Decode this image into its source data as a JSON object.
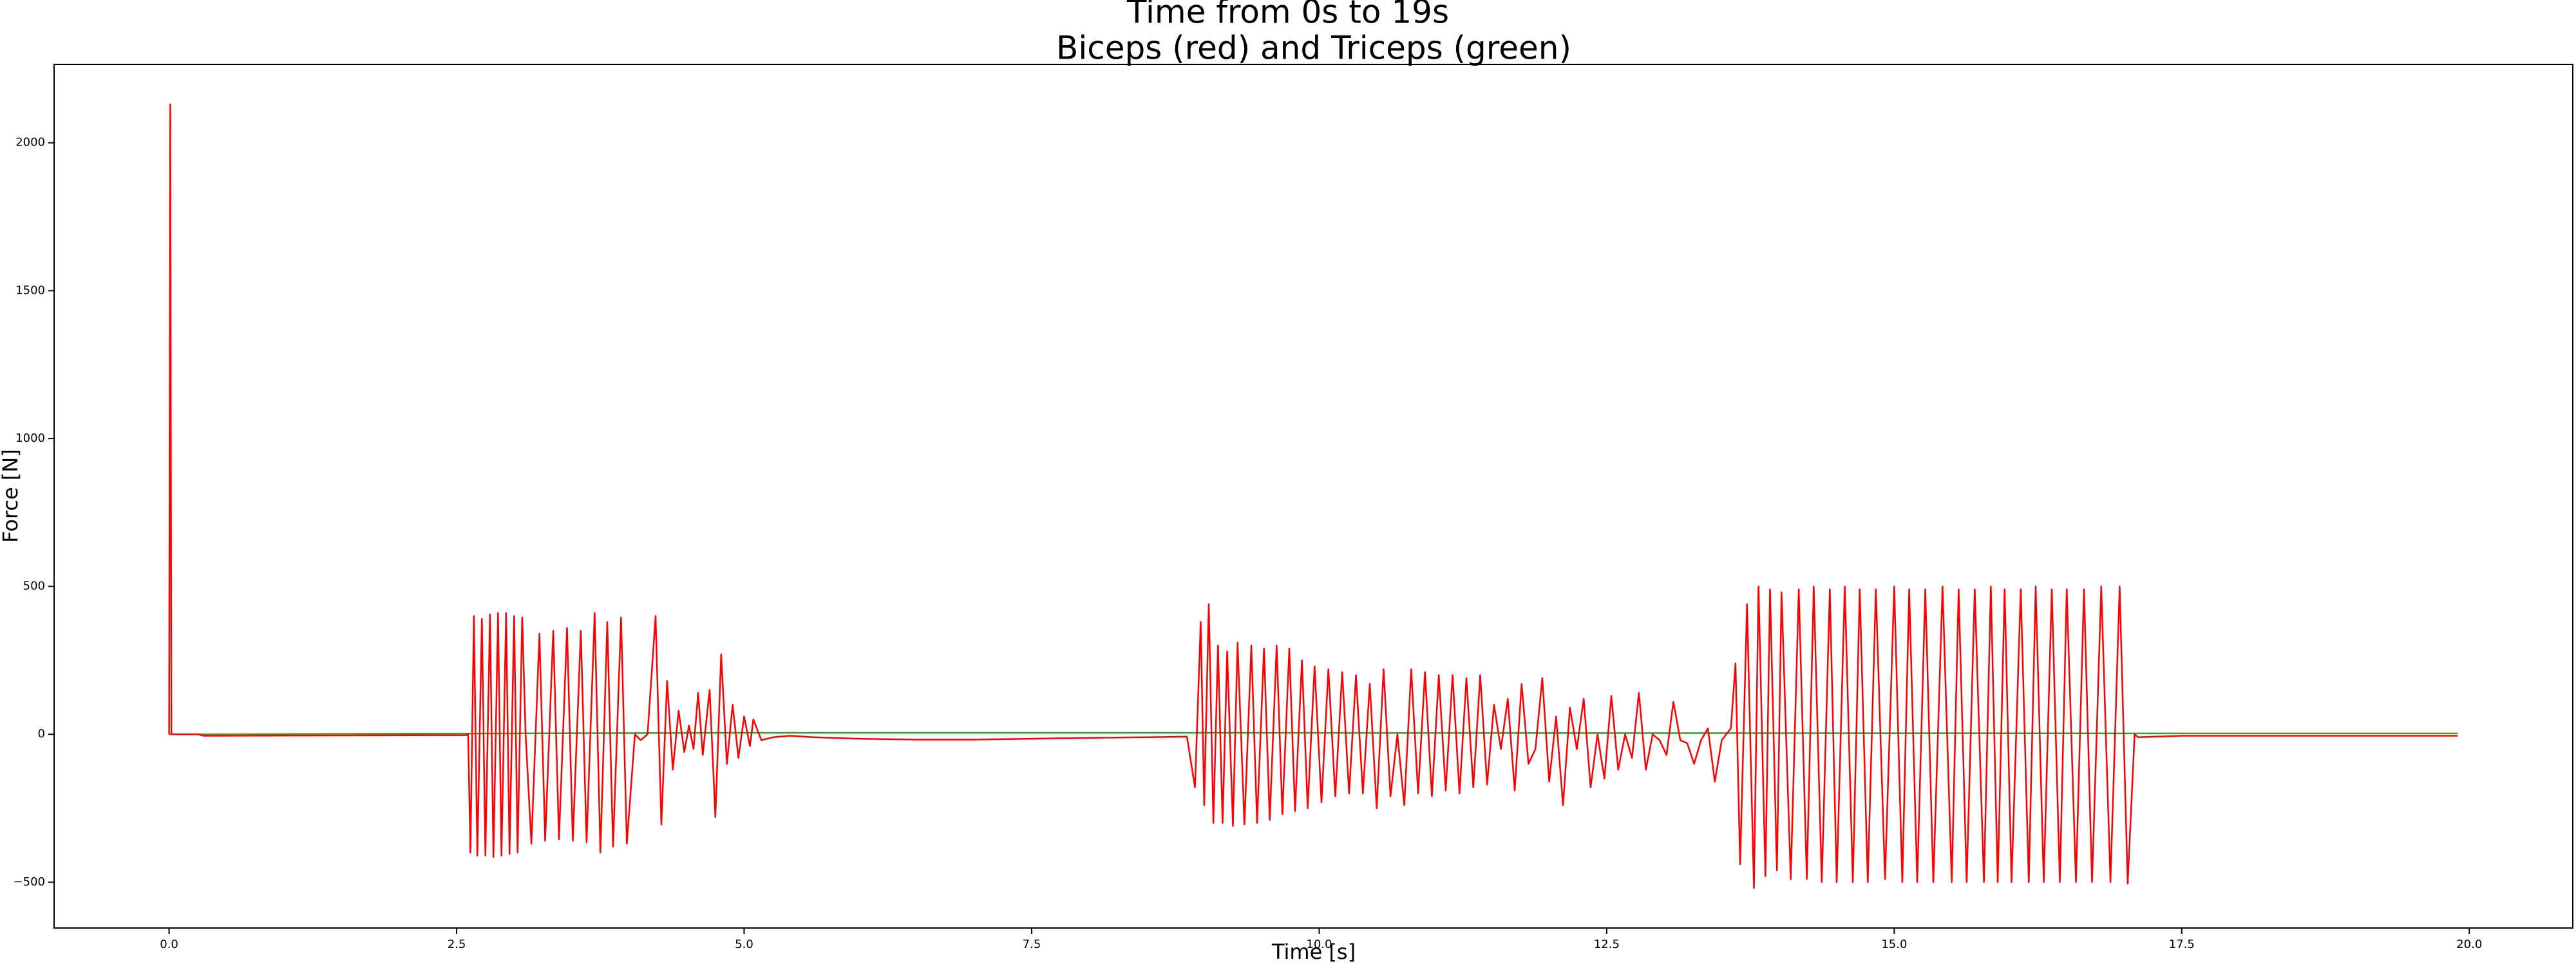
{
  "chart_data": {
    "type": "line",
    "title": "Time from 0s to 19s",
    "subtitle": "Biceps (red) and Triceps (green)",
    "x_label": "Time [s]",
    "y_label": "Force [N]",
    "xlim": [
      -1.0,
      20.9
    ],
    "ylim": [
      -655,
      2265
    ],
    "xticks": [
      {
        "value": 0,
        "label": "0.0"
      },
      {
        "value": 2.5,
        "label": "2.5"
      },
      {
        "value": 5,
        "label": "5.0"
      },
      {
        "value": 7.5,
        "label": "7.5"
      },
      {
        "value": 10,
        "label": "10.0"
      },
      {
        "value": 12.5,
        "label": "12.5"
      },
      {
        "value": 15,
        "label": "15.0"
      },
      {
        "value": 17.5,
        "label": "17.5"
      },
      {
        "value": 20,
        "label": "20.0"
      }
    ],
    "yticks": [
      {
        "value": -500,
        "label": "−500"
      },
      0,
      500,
      1000,
      1500,
      2000
    ],
    "series": [
      {
        "color": "#2ca02c",
        "x": [
          0,
          0.2,
          5.0,
          9.0,
          17.0,
          19.9
        ],
        "values": [
          0,
          0,
          5,
          5,
          3,
          3
        ]
      },
      {
        "color": "#ff0000",
        "x": [
          0,
          0.01,
          0.02,
          0.25,
          0.3,
          2.58,
          2.6,
          2.62,
          2.65,
          2.68,
          2.72,
          2.75,
          2.79,
          2.82,
          2.86,
          2.89,
          2.93,
          2.96,
          3.0,
          3.03,
          3.07,
          3.1,
          3.15,
          3.22,
          3.27,
          3.34,
          3.39,
          3.46,
          3.51,
          3.58,
          3.63,
          3.7,
          3.75,
          3.81,
          3.86,
          3.93,
          3.98,
          4.05,
          4.1,
          4.16,
          4.23,
          4.28,
          4.33,
          4.38,
          4.43,
          4.48,
          4.52,
          4.56,
          4.6,
          4.64,
          4.7,
          4.75,
          4.8,
          4.85,
          4.9,
          4.95,
          5.0,
          5.05,
          5.08,
          5.15,
          5.25,
          5.4,
          5.6,
          6.0,
          6.5,
          7.0,
          7.5,
          8.0,
          8.5,
          8.85,
          8.92,
          8.97,
          9.0,
          9.04,
          9.08,
          9.12,
          9.16,
          9.2,
          9.25,
          9.29,
          9.35,
          9.41,
          9.46,
          9.52,
          9.57,
          9.63,
          9.68,
          9.74,
          9.79,
          9.85,
          9.9,
          9.96,
          10.02,
          10.08,
          10.14,
          10.2,
          10.26,
          10.32,
          10.38,
          10.44,
          10.5,
          10.56,
          10.62,
          10.68,
          10.74,
          10.8,
          10.86,
          10.92,
          10.98,
          11.04,
          11.1,
          11.16,
          11.22,
          11.28,
          11.34,
          11.4,
          11.46,
          11.52,
          11.58,
          11.64,
          11.7,
          11.76,
          11.82,
          11.88,
          11.94,
          12.0,
          12.06,
          12.12,
          12.18,
          12.24,
          12.3,
          12.36,
          12.42,
          12.48,
          12.54,
          12.6,
          12.66,
          12.72,
          12.78,
          12.84,
          12.9,
          12.96,
          13.02,
          13.08,
          13.14,
          13.2,
          13.26,
          13.32,
          13.38,
          13.44,
          13.5,
          13.58,
          13.62,
          13.66,
          13.72,
          13.78,
          13.82,
          13.88,
          13.92,
          13.98,
          14.02,
          14.1,
          14.17,
          14.24,
          14.3,
          14.37,
          14.44,
          14.5,
          14.57,
          14.64,
          14.7,
          14.77,
          14.84,
          14.92,
          15.0,
          15.07,
          15.13,
          15.2,
          15.27,
          15.34,
          15.42,
          15.5,
          15.56,
          15.63,
          15.7,
          15.78,
          15.84,
          15.9,
          15.96,
          16.02,
          16.1,
          16.17,
          16.23,
          16.3,
          16.37,
          16.44,
          16.5,
          16.58,
          16.65,
          16.72,
          16.8,
          16.88,
          16.96,
          17.03,
          17.09,
          17.12,
          17.5,
          19.9
        ],
        "values": [
          0,
          2130,
          0,
          0,
          -5,
          -3,
          0,
          -400,
          400,
          -410,
          390,
          -410,
          405,
          -415,
          410,
          -410,
          410,
          -405,
          400,
          -400,
          395,
          0,
          -370,
          340,
          -360,
          350,
          -355,
          360,
          -360,
          350,
          -365,
          410,
          -400,
          380,
          -380,
          395,
          -370,
          0,
          -20,
          0,
          400,
          -305,
          180,
          -120,
          80,
          -60,
          30,
          -50,
          140,
          -70,
          150,
          -280,
          270,
          -100,
          100,
          -80,
          60,
          -40,
          50,
          -20,
          -10,
          -5,
          -10,
          -15,
          -18,
          -18,
          -15,
          -12,
          -10,
          -8,
          -180,
          380,
          -240,
          440,
          -300,
          300,
          -300,
          280,
          -310,
          310,
          -305,
          300,
          -300,
          290,
          -290,
          300,
          -270,
          290,
          -260,
          250,
          -250,
          230,
          -230,
          220,
          -210,
          210,
          -200,
          200,
          -200,
          170,
          -250,
          220,
          -210,
          0,
          -240,
          220,
          -200,
          210,
          -210,
          200,
          -190,
          200,
          -200,
          190,
          -180,
          200,
          -170,
          100,
          -50,
          120,
          -190,
          170,
          -100,
          -50,
          190,
          -160,
          60,
          -240,
          90,
          -50,
          120,
          -180,
          0,
          -150,
          130,
          -120,
          0,
          -80,
          140,
          -120,
          0,
          -20,
          -70,
          110,
          -20,
          -30,
          -100,
          -20,
          20,
          -160,
          -20,
          20,
          240,
          -440,
          440,
          -520,
          500,
          -480,
          490,
          -460,
          480,
          -490,
          490,
          -490,
          500,
          -500,
          490,
          -500,
          500,
          -500,
          490,
          -500,
          490,
          -490,
          500,
          -500,
          490,
          -500,
          490,
          -500,
          500,
          -500,
          490,
          -500,
          490,
          -500,
          500,
          -500,
          490,
          -500,
          490,
          -500,
          500,
          -500,
          490,
          -500,
          490,
          -500,
          490,
          -500,
          500,
          -500,
          500,
          -505,
          0,
          -10,
          -5,
          -5
        ]
      }
    ]
  }
}
